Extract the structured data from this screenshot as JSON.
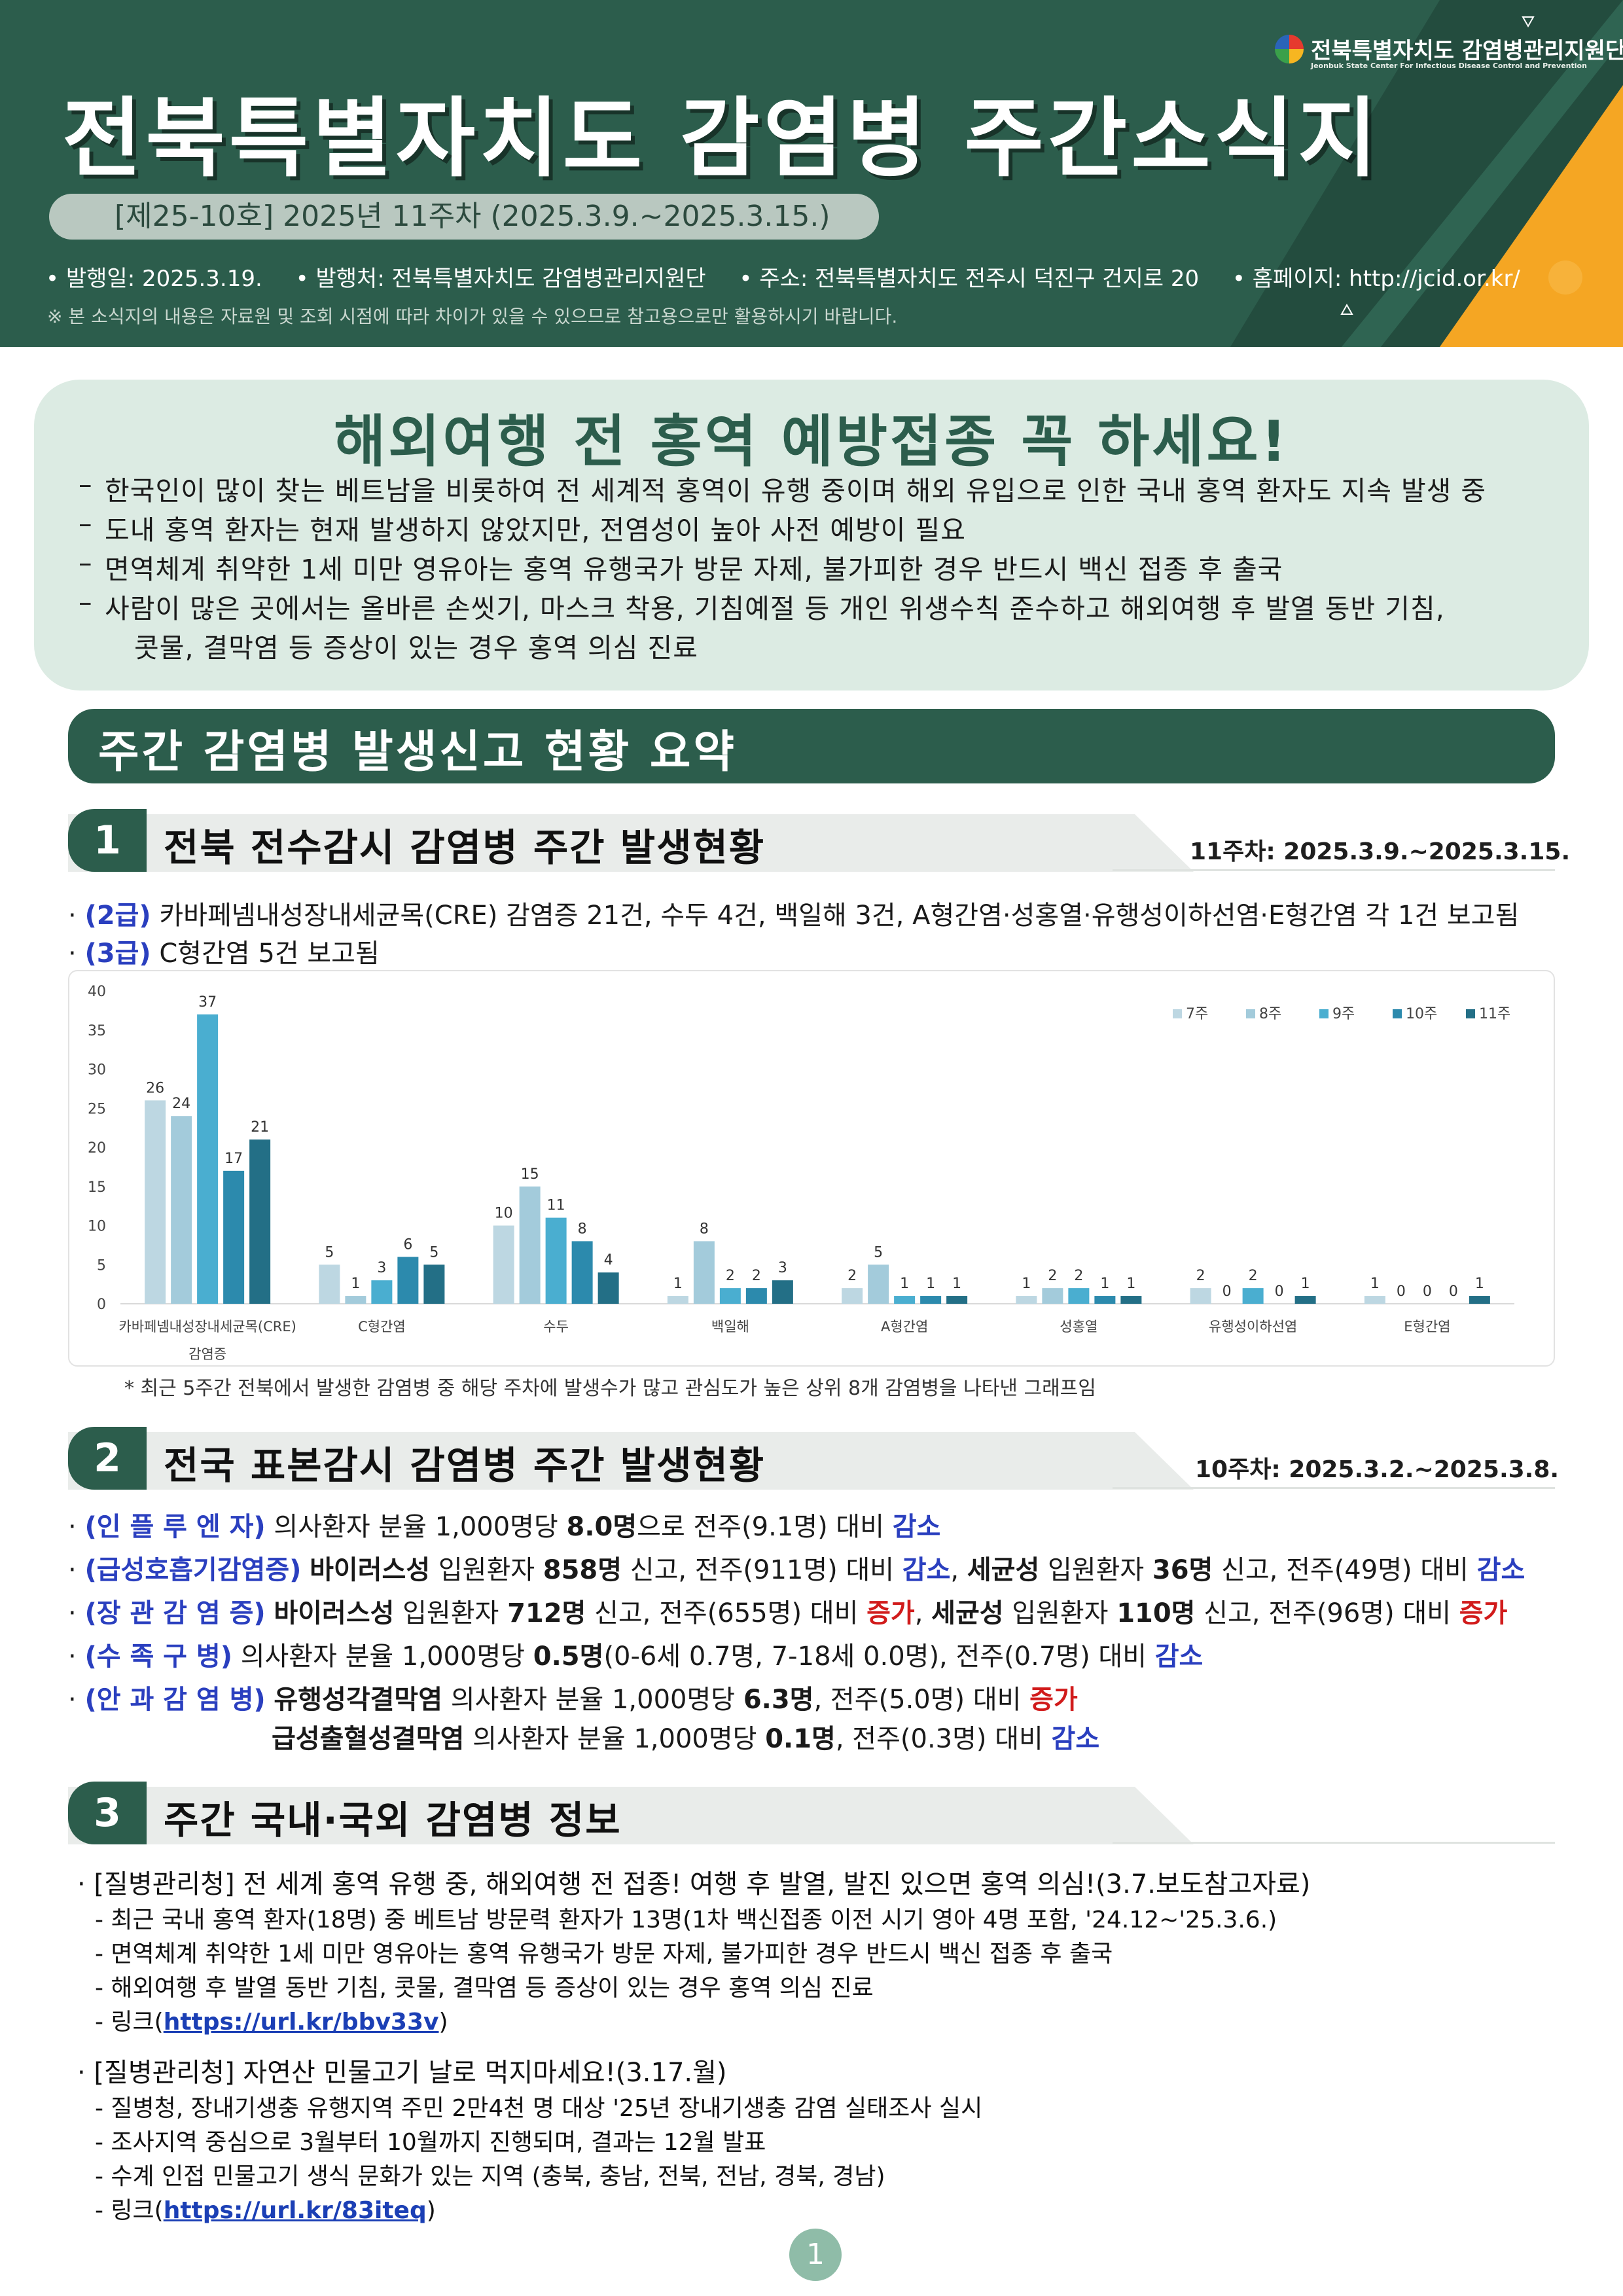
{
  "header": {
    "title": "전북특별자치도  감염병  주간소식지",
    "issue": "[제25-10호]  2025년  11주차  (2025.3.9.~2025.3.15.)",
    "pub_date": "• 발행일: 2025.3.19.",
    "publisher": "• 발행처: 전북특별자치도 감염병관리지원단",
    "address": "• 주소: 전북특별자치도 전주시 덕진구 건지로 20",
    "homepage": "• 홈페이지: http://jcid.or.kr/",
    "disclaimer": "※ 본 소식지의 내용은 자료원 및 조회 시점에 따라 차이가 있을 수 있으므로 참고용으로만 활용하시기 바랍니다.",
    "logo_name": "전북특별자치도 감염병관리지원단",
    "logo_sub": "Jeonbuk State Center For Infectious Disease Control and Prevention"
  },
  "banner": {
    "title": "해외여행  전  홍역  예방접종  꼭  하세요!",
    "lines": [
      "한국인이 많이 찾는 베트남을 비롯하여 전 세계적 홍역이 유행 중이며 해외 유입으로 인한 국내 홍역 환자도 지속 발생 중",
      "도내 홍역 환자는 현재 발생하지 않았지만, 전염성이 높아 사전 예방이 필요",
      "면역체계 취약한 1세 미만 영유아는 홍역 유행국가 방문 자제, 불가피한 경우 반드시 백신 접종 후 출국",
      "사람이 많은 곳에서는 올바른 손씻기, 마스크 착용, 기침예절 등 개인 위생수칙 준수하고 해외여행 후 발열 동반 기침,",
      "콧물, 결막염 등 증상이 있는 경우 홍역 의심 진료"
    ]
  },
  "summary_title": "주간  감염병  발생신고  현황  요약",
  "section1": {
    "num": "1",
    "title": "전북  전수감시  감염병  주간  발생현황",
    "week": "11주차:  2025.3.9.~2025.3.15.",
    "line1_tag": "(2급)",
    "line1_text": "카바페넴내성장내세균목(CRE) 감염증 21건, 수두 4건, 백일해 3건, A형간염·성홍열·유행성이하선염·E형간염 각 1건 보고됨",
    "line2_tag": "(3급)",
    "line2_text": "C형간염 5건 보고됨",
    "chart_note": "* 최근 5주간 전북에서 발생한 감염병 중 해당 주차에 발생수가 많고 관심도가 높은 상위 8개 감염병을 나타낸 그래프임"
  },
  "chart_data": {
    "type": "bar",
    "categories": [
      "카바페넴내성장내세균목(CRE) 감염증",
      "C형간염",
      "수두",
      "백일해",
      "A형간염",
      "성홍열",
      "유행성이하선염",
      "E형간염"
    ],
    "category_lines": [
      [
        "카바페넴내성장내세균목(CRE)",
        "감염증"
      ],
      [
        "C형간염"
      ],
      [
        "수두"
      ],
      [
        "백일해"
      ],
      [
        "A형간염"
      ],
      [
        "성홍열"
      ],
      [
        "유행성이하선염"
      ],
      [
        "E형간염"
      ]
    ],
    "series": [
      {
        "name": "7주",
        "color": "#bdd7e2",
        "values": [
          26,
          5,
          10,
          1,
          2,
          1,
          2,
          1
        ]
      },
      {
        "name": "8주",
        "color": "#a3cbdb",
        "values": [
          24,
          1,
          15,
          8,
          5,
          2,
          0,
          0
        ]
      },
      {
        "name": "9주",
        "color": "#4aaed0",
        "values": [
          37,
          3,
          11,
          2,
          1,
          2,
          2,
          0
        ]
      },
      {
        "name": "10주",
        "color": "#2c8aad",
        "values": [
          17,
          6,
          8,
          2,
          1,
          1,
          0,
          0
        ]
      },
      {
        "name": "11주",
        "color": "#236f86",
        "values": [
          21,
          5,
          4,
          3,
          1,
          1,
          1,
          1
        ]
      }
    ],
    "yticks": [
      "0",
      "5",
      "10",
      "15",
      "20",
      "25",
      "30",
      "35",
      "40"
    ],
    "ylim": [
      0,
      40
    ],
    "legend_position": "top-right",
    "grid": false
  },
  "section2": {
    "num": "2",
    "title": "전국  표본감시  감염병  주간  발생현황",
    "week": "10주차:  2025.3.2.~2025.3.8.",
    "rows": [
      {
        "tag": "(인 플 루 엔 자)",
        "parts": [
          [
            "n",
            "의사환자 분율 1,000명당 "
          ],
          [
            "b",
            "8.0명"
          ],
          [
            "n",
            "으로 전주(9.1명) 대비 "
          ],
          [
            "d",
            "감소"
          ]
        ]
      },
      {
        "tag": "(급성호흡기감염증)",
        "parts": [
          [
            "b",
            "바이러스성"
          ],
          [
            "n",
            " 입원환자 "
          ],
          [
            "b",
            "858명"
          ],
          [
            "n",
            " 신고, 전주(911명) 대비 "
          ],
          [
            "d",
            "감소"
          ],
          [
            "n",
            ", "
          ],
          [
            "b",
            "세균성"
          ],
          [
            "n",
            " 입원환자 "
          ],
          [
            "b",
            "36명"
          ],
          [
            "n",
            " 신고, 전주(49명) 대비 "
          ],
          [
            "d",
            "감소"
          ]
        ]
      },
      {
        "tag": "(장 관 감 염 증)",
        "parts": [
          [
            "b",
            "바이러스성"
          ],
          [
            "n",
            " 입원환자 "
          ],
          [
            "b",
            "712명"
          ],
          [
            "n",
            " 신고, 전주(655명) 대비 "
          ],
          [
            "r",
            "증가"
          ],
          [
            "n",
            ", "
          ],
          [
            "b",
            "세균성"
          ],
          [
            "n",
            " 입원환자 "
          ],
          [
            "b",
            "110명"
          ],
          [
            "n",
            " 신고, 전주(96명) 대비 "
          ],
          [
            "r",
            "증가"
          ]
        ]
      },
      {
        "tag": "(수   족   구   병)",
        "parts": [
          [
            "n",
            "의사환자 분율 1,000명당 "
          ],
          [
            "b",
            "0.5명"
          ],
          [
            "n",
            "(0-6세 0.7명, 7-18세 0.0명), 전주(0.7명) 대비 "
          ],
          [
            "d",
            "감소"
          ]
        ]
      },
      {
        "tag": "(안 과 감 염 병)",
        "parts": [
          [
            "b",
            "유행성각결막염"
          ],
          [
            "n",
            " 의사환자 분율 1,000명당 "
          ],
          [
            "b",
            "6.3명"
          ],
          [
            "n",
            ", 전주(5.0명) 대비 "
          ],
          [
            "r",
            "증가"
          ]
        ]
      },
      {
        "tag": "",
        "parts": [
          [
            "b",
            "급성출혈성결막염"
          ],
          [
            "n",
            " 의사환자 분율 1,000명당 "
          ],
          [
            "b",
            "0.1명"
          ],
          [
            "n",
            ", 전주(0.3명) 대비 "
          ],
          [
            "d",
            "감소"
          ]
        ]
      }
    ]
  },
  "section3": {
    "num": "3",
    "title": "주간  국내·국외  감염병  정보",
    "blocks": [
      {
        "head": "· [질병관리청] 전 세계 홍역 유행 중, 해외여행 전 접종! 여행 후 발열, 발진 있으면 홍역 의심!(3.7.보도참고자료)",
        "items": [
          "- 최근 국내 홍역 환자(18명) 중 베트남 방문력 환자가 13명(1차 백신접종 이전 시기 영아 4명 포함, '24.12~'25.3.6.)",
          "- 면역체계 취약한 1세 미만 영유아는 홍역 유행국가 방문 자제, 불가피한 경우 반드시 백신 접종 후 출국",
          "- 해외여행 후 발열 동반 기침, 콧물, 결막염 등 증상이 있는 경우 홍역 의심 진료"
        ],
        "link_prefix": "- 링크(",
        "link": "https://url.kr/bbv33v",
        "link_suffix": ")"
      },
      {
        "head": "· [질병관리청] 자연산 민물고기 날로 먹지마세요!(3.17.월)",
        "items": [
          "- 질병청, 장내기생충 유행지역 주민 2만4천 명 대상 '25년 장내기생충 감염 실태조사 실시",
          "- 조사지역 중심으로 3월부터 10월까지 진행되며, 결과는 12월 발표",
          "- 수계 인접 민물고기 생식 문화가 있는 지역 (충북, 충남, 전북, 전남, 경북, 경남)"
        ],
        "link_prefix": "- 링크(",
        "link": "https://url.kr/83iteq",
        "link_suffix": ")"
      }
    ]
  },
  "page_number": "1",
  "colors": {
    "primary": "#2c5d4c",
    "accent_orange": "#f5a623",
    "increase": "#d11b1b",
    "decrease": "#2a3fbf"
  }
}
